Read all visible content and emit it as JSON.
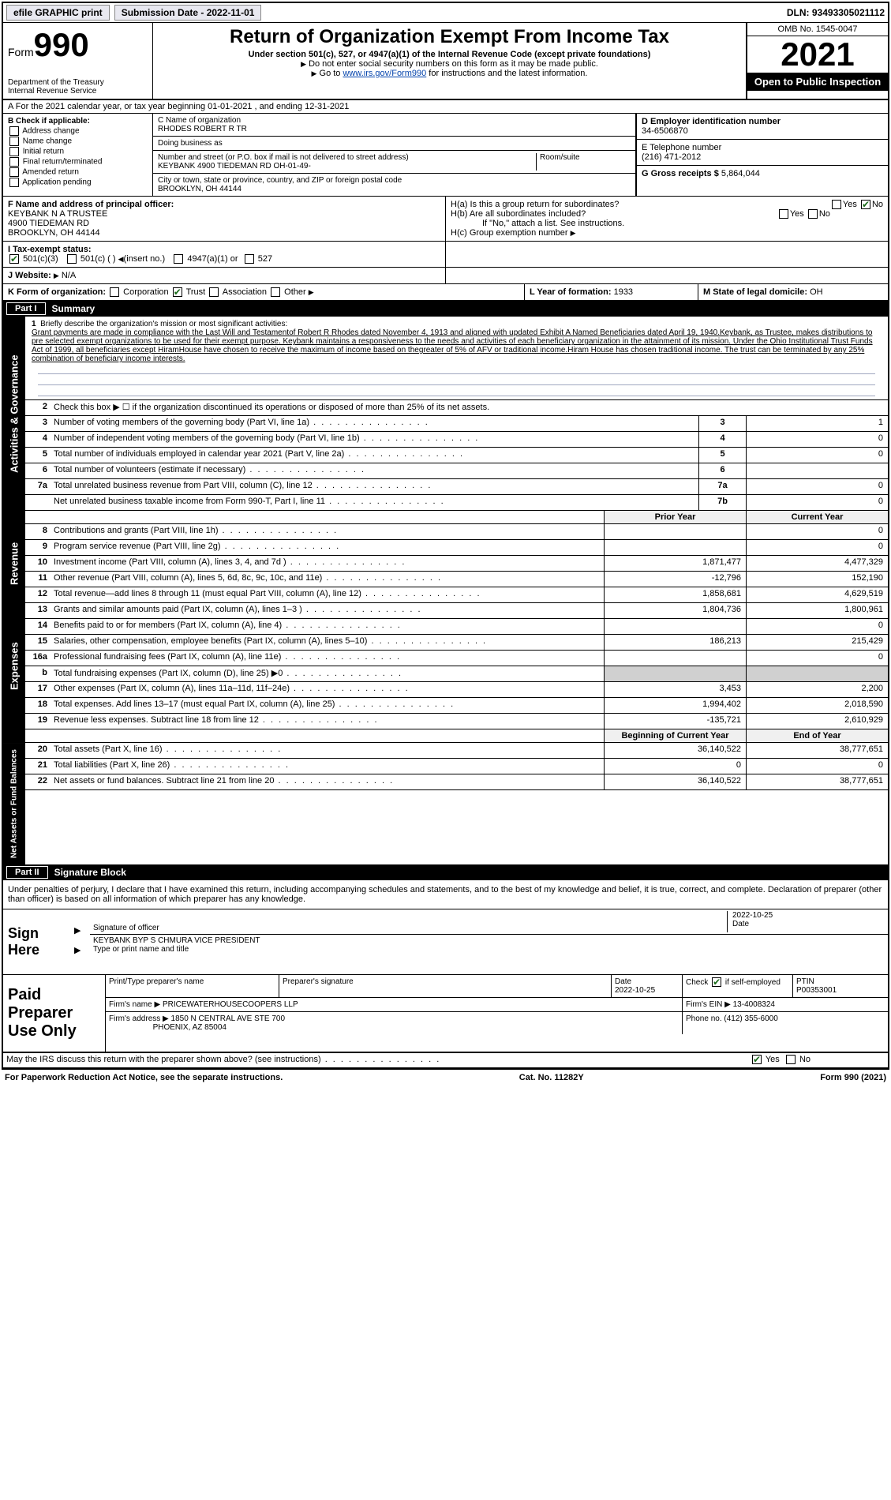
{
  "topbar": {
    "efile_label": "efile GRAPHIC print",
    "submission_label": "Submission Date - 2022-11-01",
    "dln_label": "DLN: 93493305021112"
  },
  "header": {
    "form_label": "Form",
    "form_number": "990",
    "dept": "Department of the Treasury",
    "irs": "Internal Revenue Service",
    "title": "Return of Organization Exempt From Income Tax",
    "subtitle": "Under section 501(c), 527, or 4947(a)(1) of the Internal Revenue Code (except private foundations)",
    "note1": "Do not enter social security numbers on this form as it may be made public.",
    "note2_pre": "Go to ",
    "note2_link": "www.irs.gov/Form990",
    "note2_post": " for instructions and the latest information.",
    "omb": "OMB No. 1545-0047",
    "year": "2021",
    "open_public": "Open to Public Inspection"
  },
  "row_a": "A For the 2021 calendar year, or tax year beginning 01-01-2021   , and ending 12-31-2021",
  "section_b": {
    "title": "B Check if applicable:",
    "address_change": "Address change",
    "name_change": "Name change",
    "initial_return": "Initial return",
    "final_return": "Final return/terminated",
    "amended_return": "Amended return",
    "application_pending": "Application pending"
  },
  "section_c": {
    "name_label": "C Name of organization",
    "name_value": "RHODES ROBERT R TR",
    "dba_label": "Doing business as",
    "dba_value": "",
    "street_label": "Number and street (or P.O. box if mail is not delivered to street address)",
    "street_value": "KEYBANK 4900 TIEDEMAN RD OH-01-49-",
    "room_label": "Room/suite",
    "city_label": "City or town, state or province, country, and ZIP or foreign postal code",
    "city_value": "BROOKLYN, OH  44144"
  },
  "section_d": {
    "label": "D Employer identification number",
    "value": "34-6506870"
  },
  "section_e": {
    "label": "E Telephone number",
    "value": "(216) 471-2012"
  },
  "section_g": {
    "label": "G Gross receipts $",
    "value": "5,864,044"
  },
  "section_f": {
    "label": "F  Name and address of principal officer:",
    "line1": "KEYBANK N A TRUSTEE",
    "line2": "4900 TIEDEMAN RD",
    "line3": "BROOKLYN, OH  44144"
  },
  "section_h": {
    "ha_label": "H(a)  Is this a group return for subordinates?",
    "hb_label": "H(b)  Are all subordinates included?",
    "hb_note": "If \"No,\" attach a list. See instructions.",
    "hc_label": "H(c)  Group exemption number",
    "yes": "Yes",
    "no": "No"
  },
  "section_i": {
    "label": "I  Tax-exempt status:",
    "c3": "501(c)(3)",
    "c_other": "501(c) (  )",
    "c_other_note": "(insert no.)",
    "a1": "4947(a)(1) or",
    "s527": "527"
  },
  "section_j": {
    "label": "J Website:",
    "value": "N/A"
  },
  "section_k": {
    "label": "K Form of organization:",
    "corp": "Corporation",
    "trust": "Trust",
    "assoc": "Association",
    "other": "Other"
  },
  "section_l": {
    "label": "L Year of formation:",
    "value": "1933"
  },
  "section_m": {
    "label": "M State of legal domicile:",
    "value": "OH"
  },
  "part1": {
    "num": "Part I",
    "title": "Summary",
    "line1_label": "Briefly describe the organization's mission or most significant activities:",
    "mission": "Grant payments are made in compliance with the Last Will and Testamentof Robert R Rhodes dated November 4, 1913 and aligned with updated Exhibit A Named Beneficiaries dated April 19, 1940.Keybank, as Trustee, makes distributions to pre selected exempt organizations to be used for their exempt purpose. Keybank maintains a responsiveness to the needs and activities of each beneficiary organization in the attainment of its mission. Under the Ohio Institutional Trust Funds Act of 1999, all beneficiaries except HiramHouse have chosen to receive the maximum of income based on thegreater of 5% of AFV or traditional income.Hiram House has chosen traditional income. The trust can be terminated by any 25% combination of beneficiary income interests.",
    "line2": "Check this box ▶ ☐ if the organization discontinued its operations or disposed of more than 25% of its net assets.",
    "line3": "Number of voting members of the governing body (Part VI, line 1a)",
    "line4": "Number of independent voting members of the governing body (Part VI, line 1b)",
    "line5": "Total number of individuals employed in calendar year 2021 (Part V, line 2a)",
    "line6": "Total number of volunteers (estimate if necessary)",
    "line7a": "Total unrelated business revenue from Part VIII, column (C), line 12",
    "line7b": "Net unrelated business taxable income from Form 990-T, Part I, line 11",
    "v3": "1",
    "v4": "0",
    "v5": "0",
    "v6": "",
    "v7a": "0",
    "v7b": "0",
    "hdr_prior": "Prior Year",
    "hdr_current": "Current Year",
    "lines_revenue": [
      {
        "num": "8",
        "desc": "Contributions and grants (Part VIII, line 1h)",
        "prior": "",
        "curr": "0"
      },
      {
        "num": "9",
        "desc": "Program service revenue (Part VIII, line 2g)",
        "prior": "",
        "curr": "0"
      },
      {
        "num": "10",
        "desc": "Investment income (Part VIII, column (A), lines 3, 4, and 7d )",
        "prior": "1,871,477",
        "curr": "4,477,329"
      },
      {
        "num": "11",
        "desc": "Other revenue (Part VIII, column (A), lines 5, 6d, 8c, 9c, 10c, and 11e)",
        "prior": "-12,796",
        "curr": "152,190"
      },
      {
        "num": "12",
        "desc": "Total revenue—add lines 8 through 11 (must equal Part VIII, column (A), line 12)",
        "prior": "1,858,681",
        "curr": "4,629,519"
      }
    ],
    "lines_expenses": [
      {
        "num": "13",
        "desc": "Grants and similar amounts paid (Part IX, column (A), lines 1–3 )",
        "prior": "1,804,736",
        "curr": "1,800,961"
      },
      {
        "num": "14",
        "desc": "Benefits paid to or for members (Part IX, column (A), line 4)",
        "prior": "",
        "curr": "0"
      },
      {
        "num": "15",
        "desc": "Salaries, other compensation, employee benefits (Part IX, column (A), lines 5–10)",
        "prior": "186,213",
        "curr": "215,429"
      },
      {
        "num": "16a",
        "desc": "Professional fundraising fees (Part IX, column (A), line 11e)",
        "prior": "",
        "curr": "0"
      },
      {
        "num": "b",
        "desc": "Total fundraising expenses (Part IX, column (D), line 25) ▶0",
        "prior": "GREY",
        "curr": "GREY"
      },
      {
        "num": "17",
        "desc": "Other expenses (Part IX, column (A), lines 11a–11d, 11f–24e)",
        "prior": "3,453",
        "curr": "2,200"
      },
      {
        "num": "18",
        "desc": "Total expenses. Add lines 13–17 (must equal Part IX, column (A), line 25)",
        "prior": "1,994,402",
        "curr": "2,018,590"
      },
      {
        "num": "19",
        "desc": "Revenue less expenses. Subtract line 18 from line 12",
        "prior": "-135,721",
        "curr": "2,610,929"
      }
    ],
    "hdr_boy": "Beginning of Current Year",
    "hdr_eoy": "End of Year",
    "lines_netassets": [
      {
        "num": "20",
        "desc": "Total assets (Part X, line 16)",
        "prior": "36,140,522",
        "curr": "38,777,651"
      },
      {
        "num": "21",
        "desc": "Total liabilities (Part X, line 26)",
        "prior": "0",
        "curr": "0"
      },
      {
        "num": "22",
        "desc": "Net assets or fund balances. Subtract line 21 from line 20",
        "prior": "36,140,522",
        "curr": "38,777,651"
      }
    ]
  },
  "part2": {
    "num": "Part II",
    "title": "Signature Block",
    "perjury": "Under penalties of perjury, I declare that I have examined this return, including accompanying schedules and statements, and to the best of my knowledge and belief, it is true, correct, and complete. Declaration of preparer (other than officer) is based on all information of which preparer has any knowledge.",
    "sign_here": "Sign Here",
    "sig_officer": "Signature of officer",
    "sig_date_label": "Date",
    "sig_date": "2022-10-25",
    "sig_name": "KEYBANK BYP S CHMURA  VICE PRESIDENT",
    "sig_type_label": "Type or print name and title",
    "paid_prep": "Paid Preparer Use Only",
    "prep_name_label": "Print/Type preparer's name",
    "prep_sig_label": "Preparer's signature",
    "prep_date_label": "Date",
    "prep_date": "2022-10-25",
    "prep_self_label": "Check ☑ if self-employed",
    "ptin_label": "PTIN",
    "ptin": "P00353001",
    "firm_name_label": "Firm's name   ▶",
    "firm_name": "PRICEWATERHOUSECOOPERS LLP",
    "firm_ein_label": "Firm's EIN ▶",
    "firm_ein": "13-4008324",
    "firm_addr_label": "Firm's address ▶",
    "firm_addr1": "1850 N CENTRAL AVE STE 700",
    "firm_addr2": "PHOENIX, AZ  85004",
    "phone_label": "Phone no.",
    "phone": "(412) 355-6000",
    "may_irs": "May the IRS discuss this return with the preparer shown above? (see instructions)"
  },
  "footer": {
    "paperwork": "For Paperwork Reduction Act Notice, see the separate instructions.",
    "cat": "Cat. No. 11282Y",
    "form": "Form 990 (2021)"
  },
  "vtabs": {
    "activities": "Activities & Governance",
    "revenue": "Revenue",
    "expenses": "Expenses",
    "netassets": "Net Assets or Fund Balances"
  }
}
